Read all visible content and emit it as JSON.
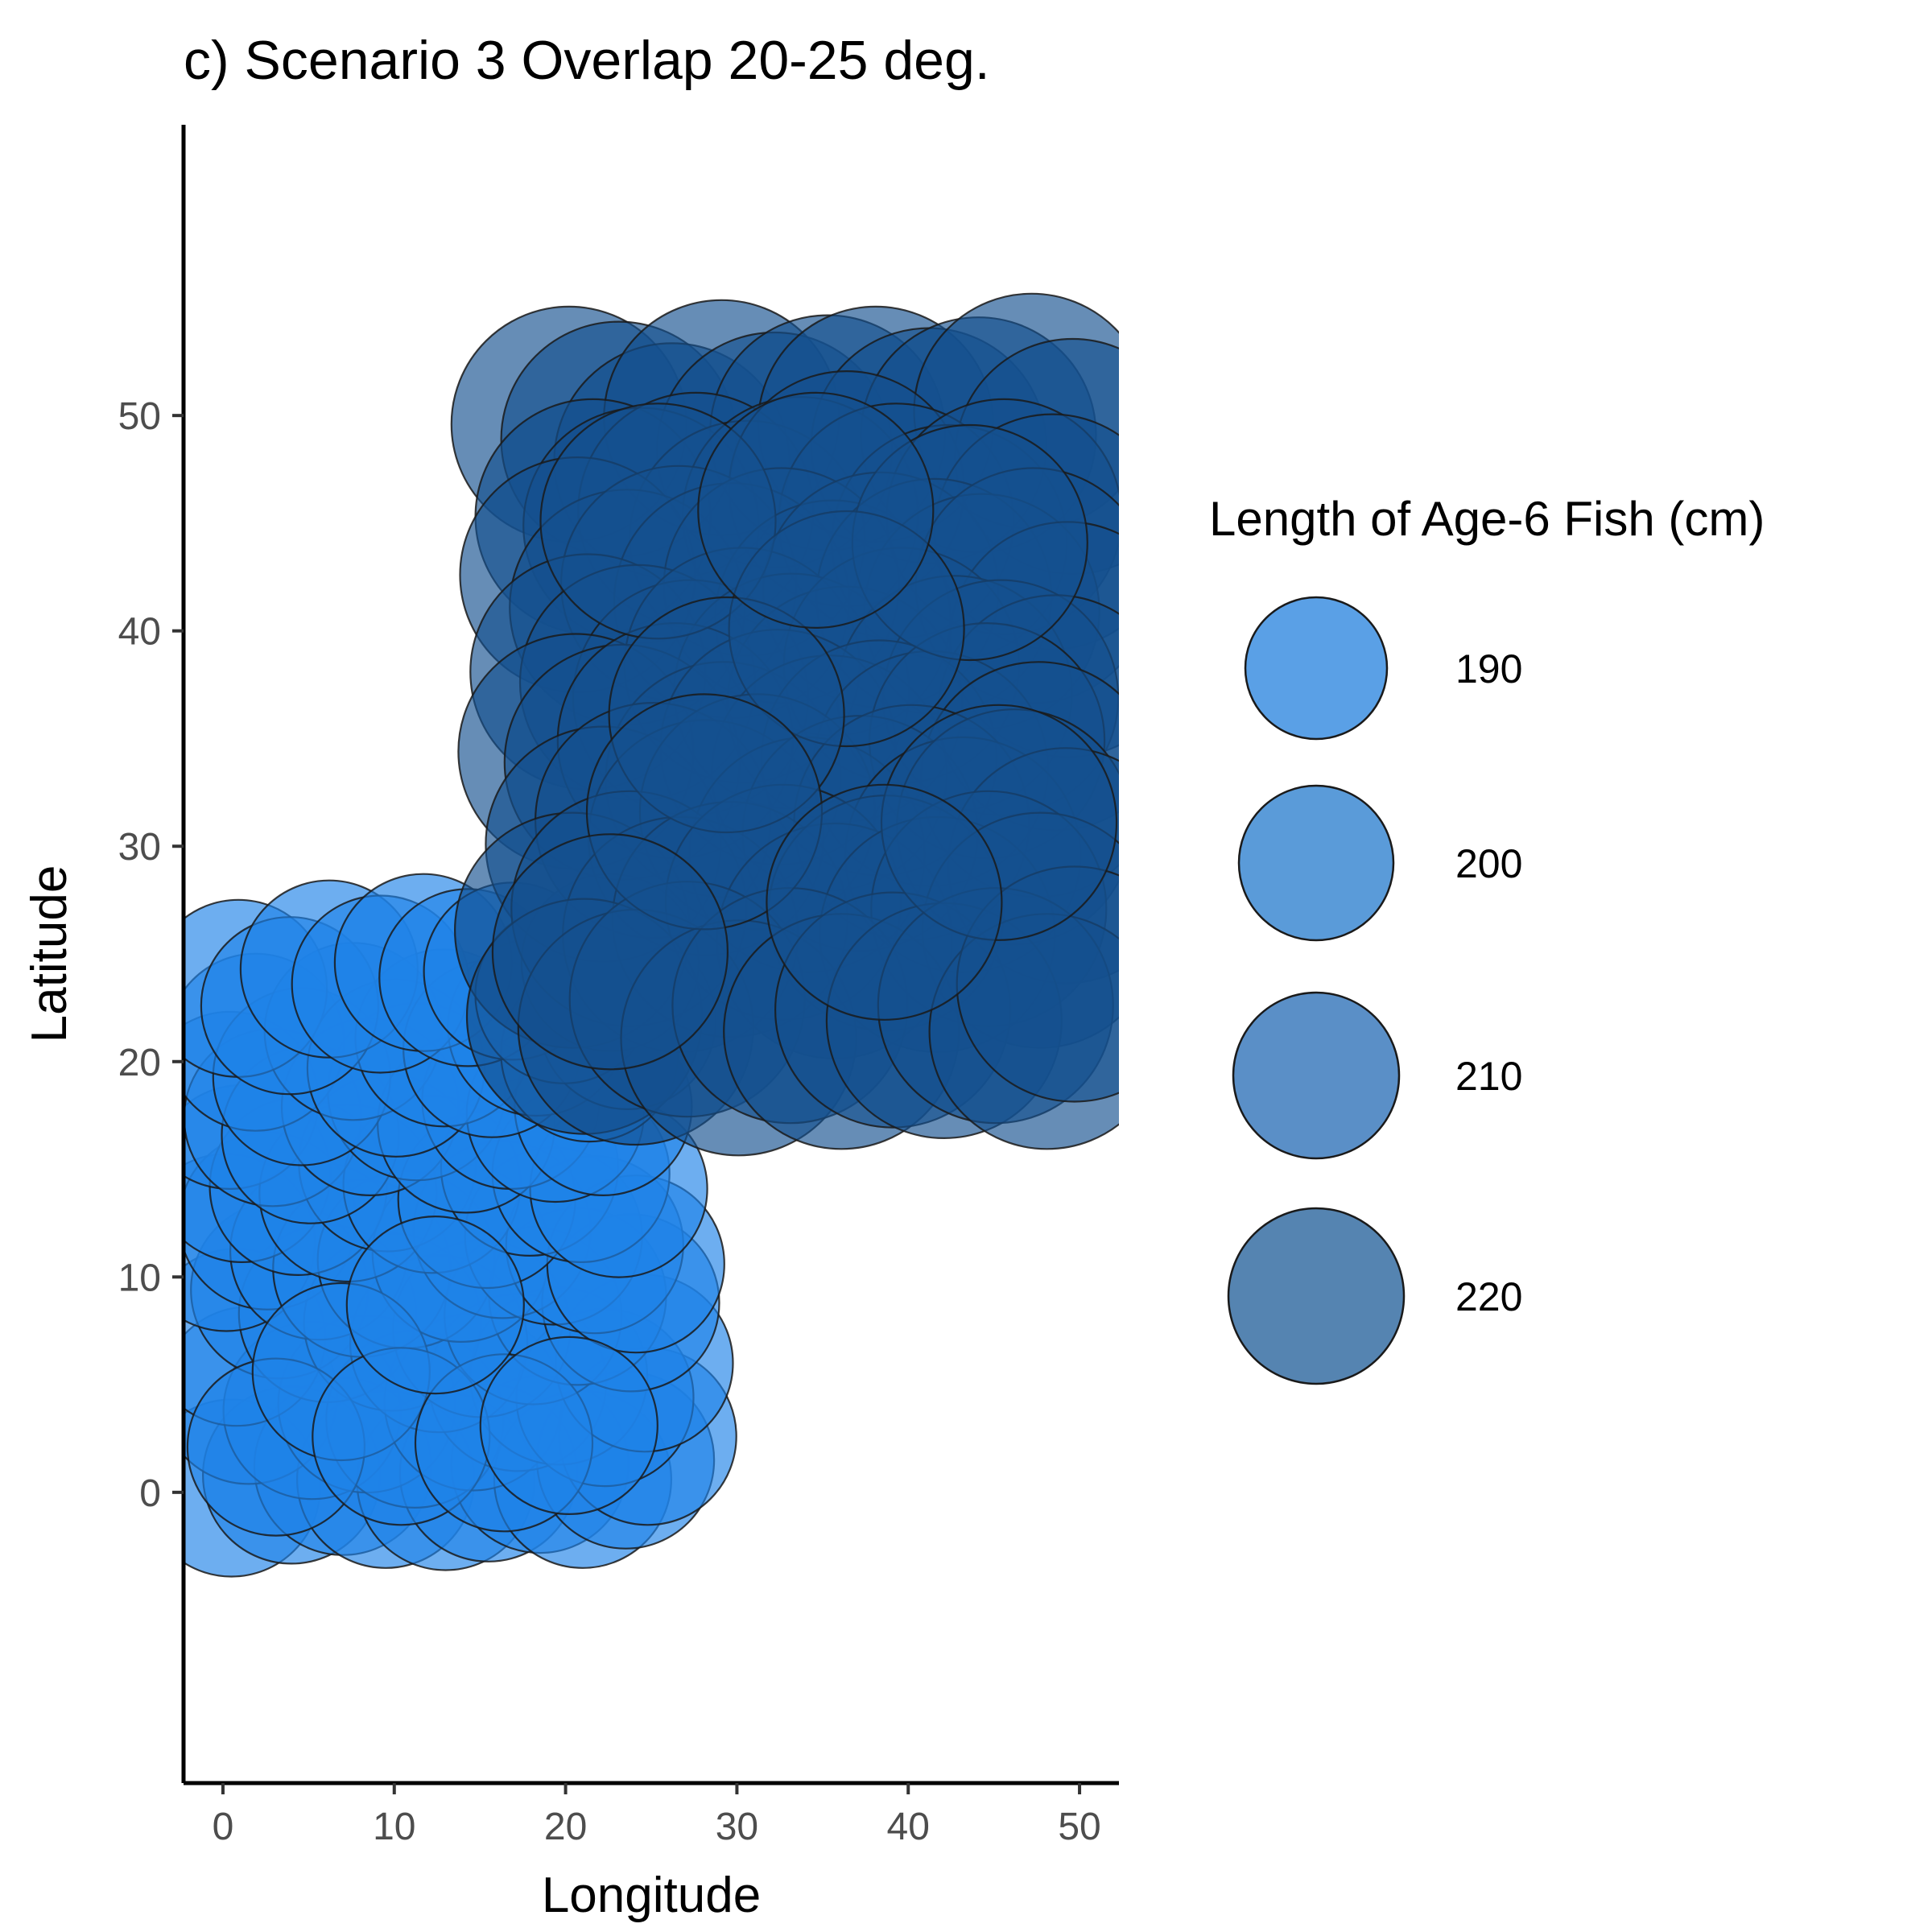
{
  "chart_data": {
    "type": "scatter",
    "title": "c) Scenario 3 Overlap 20-25 deg.",
    "xlabel": "Longitude",
    "ylabel": "Latitude",
    "xlim": [
      -2.3,
      52.3
    ],
    "ylim": [
      -13.5,
      63.5
    ],
    "x_ticks": [
      0,
      10,
      20,
      30,
      40,
      50
    ],
    "y_ticks": [
      0,
      10,
      20,
      30,
      40,
      50
    ],
    "grid": false,
    "legend": {
      "title": "Length of Age-6 Fish (cm)",
      "placement": "right",
      "entries": [
        {
          "label": "190",
          "value": 190,
          "color": "#5aa0e6"
        },
        {
          "label": "200",
          "value": 200,
          "color": "#5a9bd9"
        },
        {
          "label": "210",
          "value": 210,
          "color": "#5a8fc7"
        },
        {
          "label": "220",
          "value": 220,
          "color": "#5584b1"
        }
      ]
    },
    "series": [
      {
        "region": "southwest",
        "x_range": [
          0,
          25
        ],
        "y_range": [
          0,
          25
        ],
        "fill": "#1e82e8",
        "length_cm": 190,
        "points": [
          [
            0.5,
            0.2
          ],
          [
            4,
            0.8
          ],
          [
            7,
            1.2
          ],
          [
            9.5,
            0.6
          ],
          [
            13,
            0.5
          ],
          [
            15.5,
            0.9
          ],
          [
            18.5,
            1.3
          ],
          [
            21,
            0.6
          ],
          [
            23.5,
            1.5
          ],
          [
            24.8,
            2.6
          ],
          [
            1.5,
            4.5
          ],
          [
            5.2,
            3.8
          ],
          [
            8.4,
            4.1
          ],
          [
            11.2,
            3.4
          ],
          [
            14.6,
            4.2
          ],
          [
            17.2,
            5.1
          ],
          [
            19.6,
            5.4
          ],
          [
            22.3,
            4.4
          ],
          [
            24.6,
            6
          ],
          [
            0.8,
            7.2
          ],
          [
            3.3,
            9.4
          ],
          [
            6.1,
            8.3
          ],
          [
            9.9,
            7.9
          ],
          [
            12.6,
            6.9
          ],
          [
            15.1,
            7.6
          ],
          [
            18.1,
            8.2
          ],
          [
            20.7,
            9.1
          ],
          [
            23.8,
            8.8
          ],
          [
            0.2,
            11.6
          ],
          [
            2.6,
            12.6
          ],
          [
            5.6,
            11.2
          ],
          [
            8.1,
            10.4
          ],
          [
            10.7,
            10.8
          ],
          [
            13.9,
            11.1
          ],
          [
            16.3,
            12.2
          ],
          [
            19.3,
            11.9
          ],
          [
            21.7,
            11.5
          ],
          [
            24.1,
            10.6
          ],
          [
            1.1,
            14.8
          ],
          [
            4.4,
            14.2
          ],
          [
            7.3,
            13.9
          ],
          [
            9.6,
            15.3
          ],
          [
            12.2,
            14.3
          ],
          [
            15.4,
            13.6
          ],
          [
            17.9,
            15.1
          ],
          [
            20.9,
            14.8
          ],
          [
            23.1,
            14.1
          ],
          [
            0.4,
            18.2
          ],
          [
            2.9,
            17.4
          ],
          [
            5.1,
            16.6
          ],
          [
            8.6,
            17.9
          ],
          [
            11.3,
            18.6
          ],
          [
            14.2,
            17.1
          ],
          [
            16.8,
            18.2
          ],
          [
            19.4,
            17.6
          ],
          [
            22.2,
            17.9
          ],
          [
            1.9,
            20.9
          ],
          [
            4.6,
            19.3
          ],
          [
            7.6,
            21.4
          ],
          [
            10.1,
            19.7
          ],
          [
            12.9,
            21.1
          ],
          [
            15.7,
            20.6
          ],
          [
            18.3,
            21.6
          ],
          [
            21.4,
            20.4
          ],
          [
            23.6,
            21.9
          ],
          [
            0.9,
            23.4
          ],
          [
            3.9,
            22.6
          ],
          [
            6.2,
            24.3
          ],
          [
            9.2,
            23.6
          ],
          [
            11.7,
            24.6
          ],
          [
            14.3,
            23.9
          ],
          [
            16.9,
            24.2
          ],
          [
            19.9,
            23.1
          ],
          [
            22.6,
            24.6
          ],
          [
            3.1,
            2.1
          ],
          [
            6.9,
            5.6
          ],
          [
            10.4,
            2.6
          ],
          [
            16.4,
            2.3
          ],
          [
            20.2,
            3.1
          ],
          [
            12.4,
            8.7
          ]
        ]
      },
      {
        "region": "northeast",
        "x_range": [
          20,
          50
        ],
        "y_range": [
          20,
          50
        ],
        "fill": "#14508f",
        "length_cm": 220,
        "points": [
          [
            20.2,
            49.6
          ],
          [
            23.1,
            48.9
          ],
          [
            26.2,
            47.9
          ],
          [
            29.1,
            49.9
          ],
          [
            32.2,
            48.4
          ],
          [
            35.3,
            49.2
          ],
          [
            38.1,
            49.6
          ],
          [
            41.2,
            48.6
          ],
          [
            44.1,
            49.1
          ],
          [
            47.2,
            50.2
          ],
          [
            49.6,
            48.1
          ],
          [
            21.6,
            45.3
          ],
          [
            24.4,
            44.9
          ],
          [
            27.6,
            45.6
          ],
          [
            30.6,
            44.3
          ],
          [
            33.7,
            45.4
          ],
          [
            36.4,
            46.6
          ],
          [
            39.3,
            45.1
          ],
          [
            42.4,
            44.1
          ],
          [
            45.6,
            45.3
          ],
          [
            48.4,
            44.6
          ],
          [
            20.7,
            42.6
          ],
          [
            23.6,
            41.1
          ],
          [
            26.6,
            42.2
          ],
          [
            29.7,
            41.4
          ],
          [
            32.6,
            42.1
          ],
          [
            35.6,
            40.6
          ],
          [
            38.4,
            41.9
          ],
          [
            41.5,
            41.6
          ],
          [
            44.3,
            40.9
          ],
          [
            47.3,
            42.1
          ],
          [
            49.3,
            39.6
          ],
          [
            21.3,
            38.1
          ],
          [
            24.2,
            37.6
          ],
          [
            27.3,
            36.9
          ],
          [
            30.3,
            38.4
          ],
          [
            33.2,
            37.2
          ],
          [
            36.3,
            36.6
          ],
          [
            39.6,
            38.4
          ],
          [
            42.7,
            37.1
          ],
          [
            45.4,
            36.9
          ],
          [
            48.6,
            36.2
          ],
          [
            20.6,
            34.4
          ],
          [
            23.3,
            33.9
          ],
          [
            26.4,
            34.9
          ],
          [
            29.2,
            33.1
          ],
          [
            32.4,
            34.6
          ],
          [
            35.4,
            33.4
          ],
          [
            38.3,
            34.1
          ],
          [
            41.3,
            33.6
          ],
          [
            44.6,
            34.9
          ],
          [
            47.6,
            33.1
          ],
          [
            22.2,
            30.1
          ],
          [
            25.1,
            31.2
          ],
          [
            28.2,
            30.4
          ],
          [
            31.2,
            31.6
          ],
          [
            34.1,
            29.6
          ],
          [
            37.2,
            30.6
          ],
          [
            40.2,
            31.1
          ],
          [
            43.2,
            29.6
          ],
          [
            46.2,
            30.9
          ],
          [
            49.2,
            29.1
          ],
          [
            20.4,
            26.1
          ],
          [
            23.7,
            27.1
          ],
          [
            26.7,
            25.9
          ],
          [
            29.6,
            26.6
          ],
          [
            32.7,
            27.4
          ],
          [
            35.7,
            25.6
          ],
          [
            38.7,
            26.9
          ],
          [
            41.7,
            25.9
          ],
          [
            44.7,
            27.1
          ],
          [
            47.7,
            26.1
          ],
          [
            21.1,
            22.1
          ],
          [
            24.1,
            21.6
          ],
          [
            27.1,
            22.9
          ],
          [
            30.1,
            21.1
          ],
          [
            33.1,
            22.6
          ],
          [
            36.1,
            21.4
          ],
          [
            39.1,
            22.4
          ],
          [
            42.1,
            21.9
          ],
          [
            45.1,
            22.6
          ],
          [
            48.1,
            21.4
          ],
          [
            49.7,
            23.6
          ],
          [
            25.4,
            45.1
          ],
          [
            43.6,
            44.1
          ],
          [
            36.4,
            40.1
          ],
          [
            29.4,
            36.1
          ],
          [
            45.3,
            31.1
          ],
          [
            28.1,
            31.6
          ],
          [
            38.6,
            27.4
          ],
          [
            22.6,
            25.1
          ],
          [
            34.6,
            45.6
          ]
        ]
      }
    ],
    "bubble_fill_opacity": 0.65
  }
}
